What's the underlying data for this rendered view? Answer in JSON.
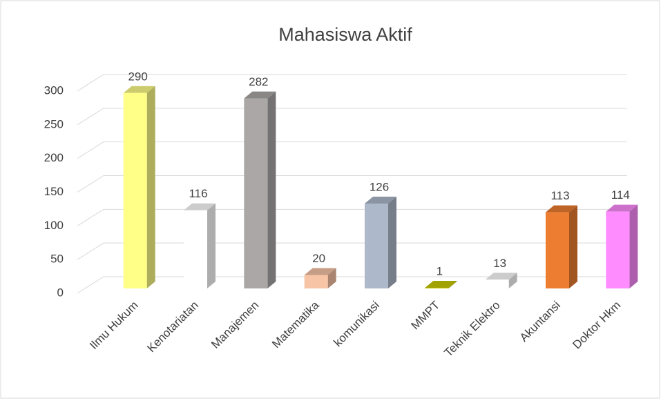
{
  "chart_data": {
    "type": "bar3d",
    "title": "Mahasiswa Aktif",
    "categories": [
      "Ilmu Hukum",
      "Kenotariatan",
      "Manajemen",
      "Matematika",
      "komunikasi",
      "MMPT",
      "Teknik Elektro",
      "Akuntansi",
      "Doktor Hkm"
    ],
    "values": [
      290,
      116,
      282,
      20,
      126,
      1,
      13,
      113,
      114
    ],
    "colors": [
      "#ffff88",
      "#ffffff",
      "#aba7a7",
      "#f8c4a6",
      "#adb9ca",
      "#c9c900",
      "#ffffff",
      "#ed7d31",
      "#ff8cff"
    ],
    "ylim": [
      0,
      300
    ],
    "yticks": [
      0,
      50,
      100,
      150,
      200,
      250,
      300
    ],
    "grid": true
  }
}
